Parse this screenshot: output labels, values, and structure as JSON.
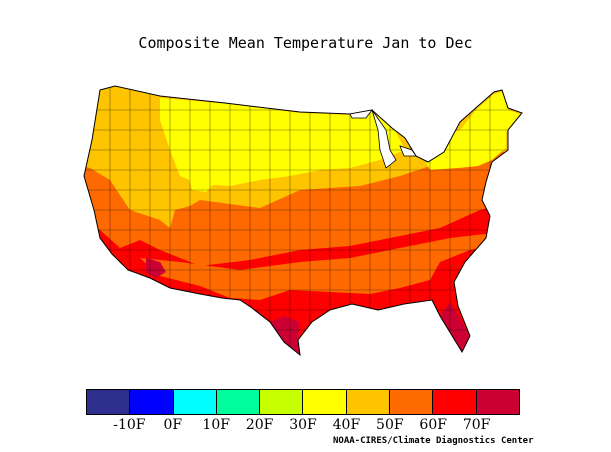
{
  "title": "Composite Mean Temperature Jan to Dec",
  "credit": "NOAA-CIRES/Climate Diagnostics Center",
  "legend": {
    "colors": [
      "#2f2f8f",
      "#0000ff",
      "#00ffff",
      "#00ff9c",
      "#c8ff00",
      "#ffff00",
      "#ffc400",
      "#ff6a00",
      "#ff0000",
      "#cc0033"
    ],
    "labels": [
      "-10F",
      "0F",
      "10F",
      "20F",
      "30F",
      "40F",
      "50F",
      "60F",
      "70F"
    ]
  }
}
